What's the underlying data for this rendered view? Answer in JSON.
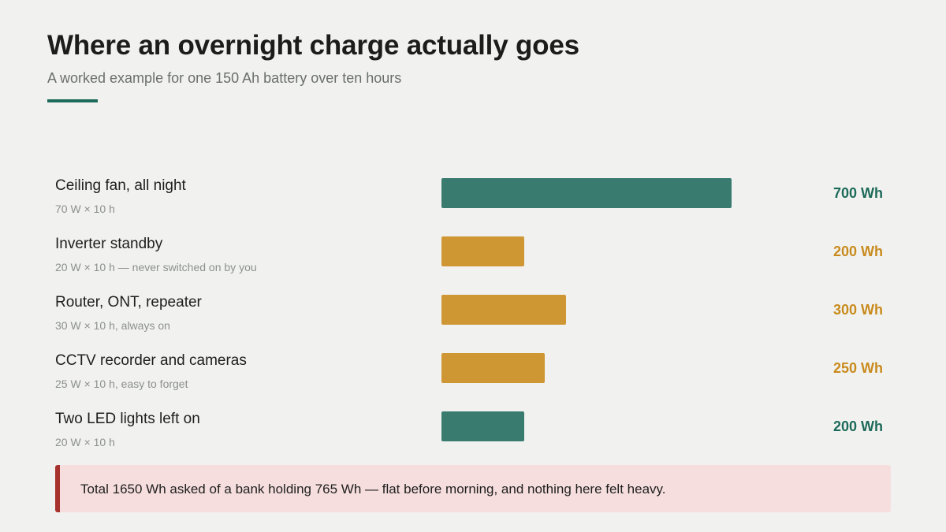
{
  "header": {
    "title": "Where an overnight charge actually goes",
    "subtitle": "A worked example for one 150 Ah battery over ten hours"
  },
  "colors": {
    "teal": "#3a7b70",
    "amber": "#cf9634",
    "teal_text": "#1e6a5a",
    "amber_text": "#c98b1e",
    "callout_bg": "#f6dede",
    "callout_border": "#a8332e"
  },
  "chart_data": {
    "type": "bar",
    "orientation": "horizontal",
    "title": "Where an overnight charge actually goes",
    "subtitle": "A worked example for one 150 Ah battery over ten hours",
    "unit": "Wh",
    "xlim": [
      0,
      700
    ],
    "grid": false,
    "categories": [
      "Ceiling fan, all night",
      "Inverter standby",
      "Router, ONT, repeater",
      "CCTV recorder and cameras",
      "Two LED lights left on"
    ],
    "notes": [
      "70 W × 10 h",
      "20 W × 10 h — never switched on by you",
      "30 W × 10 h, always on",
      "25 W × 10 h, easy to forget",
      "20 W × 10 h"
    ],
    "values": [
      700,
      200,
      300,
      250,
      200
    ],
    "value_labels": [
      "700 Wh",
      "200 Wh",
      "300 Wh",
      "250 Wh",
      "200 Wh"
    ],
    "highlight": [
      "teal",
      "amber",
      "amber",
      "amber",
      "teal"
    ]
  },
  "callout": {
    "text": "Total 1650 Wh asked of a bank holding 765 Wh — flat before morning, and nothing here felt heavy."
  }
}
